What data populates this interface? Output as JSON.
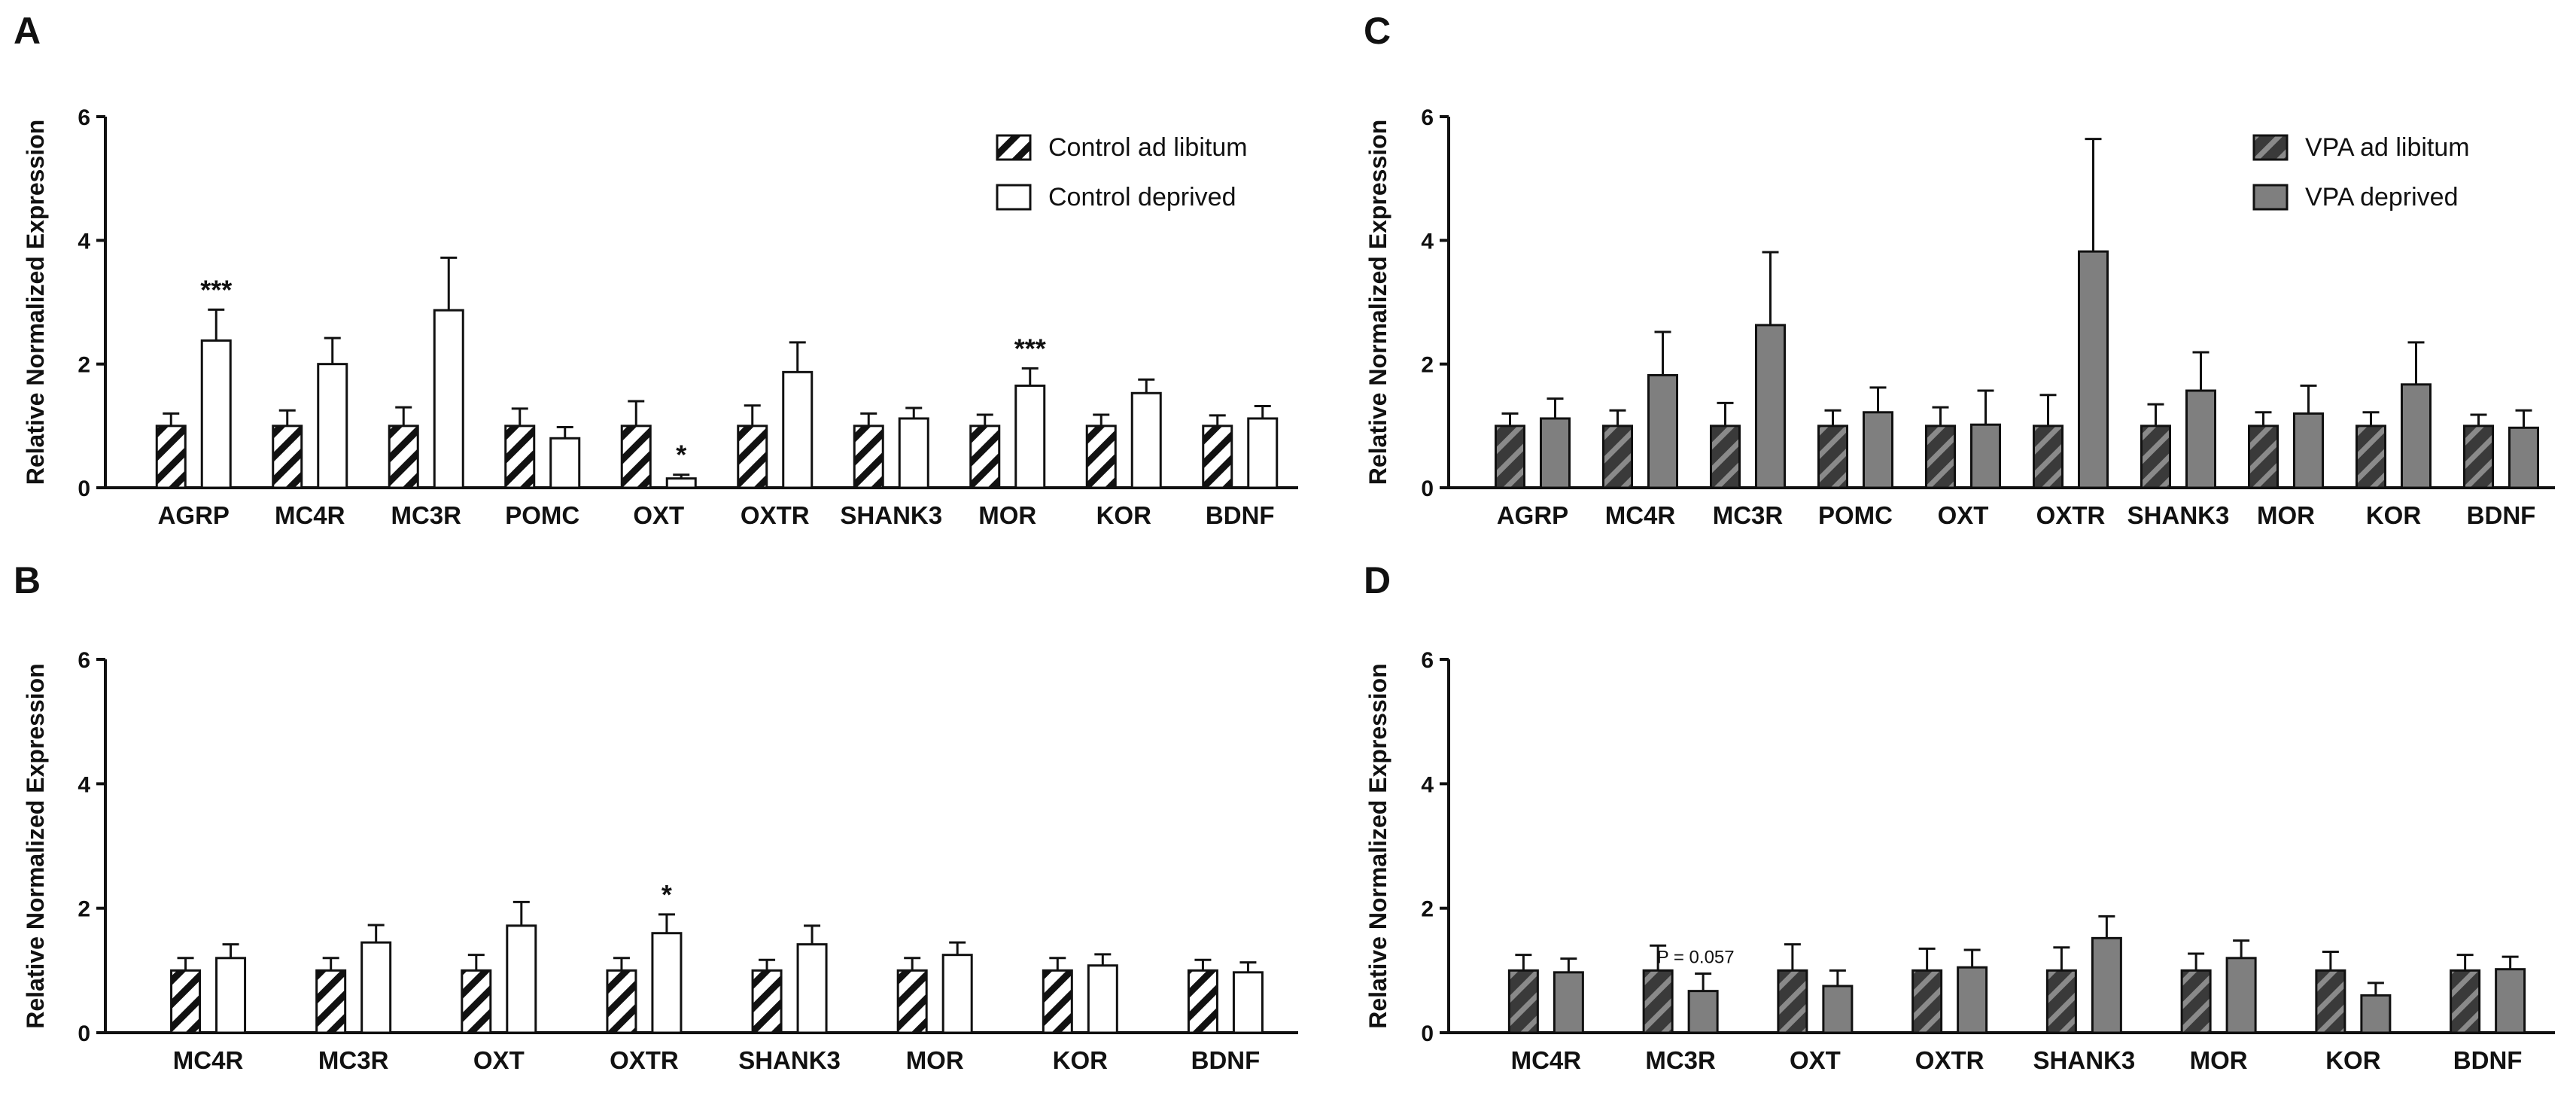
{
  "figure": {
    "panels": [
      "A",
      "B",
      "C",
      "D"
    ]
  },
  "colors": {
    "control_adlib_stripe": "#111111",
    "control_adlib_fill": "#ffffff",
    "control_deprived_fill": "#ffffff",
    "vpa_adlib_fill": "#404040",
    "vpa_adlib_stripe": "#8a8a8a",
    "vpa_deprived_fill": "#7f7f7f",
    "axis": "#111111"
  },
  "chart_data": [
    {
      "panel": "A",
      "type": "bar",
      "title": "",
      "xlabel": "",
      "ylabel": "Relative Normalized Expression",
      "ylim": [
        0,
        6
      ],
      "yticks": [
        "0",
        "2",
        "4",
        "6"
      ],
      "legend": [
        "Control ad libitum",
        "Control deprived"
      ],
      "legend_position": "top-right",
      "categories": [
        "AGRP",
        "MC4R",
        "MC3R",
        "POMC",
        "OXT",
        "OXTR",
        "SHANK3",
        "MOR",
        "KOR",
        "BDNF"
      ],
      "series": [
        {
          "name": "Control ad libitum",
          "style": "hatched-white",
          "values": [
            1,
            1,
            1,
            1,
            1,
            1,
            1,
            1,
            1,
            1
          ],
          "errors": [
            0.2,
            0.25,
            0.3,
            0.28,
            0.4,
            0.33,
            0.2,
            0.18,
            0.18,
            0.17
          ]
        },
        {
          "name": "Control deprived",
          "style": "white",
          "values": [
            2.38,
            2.0,
            2.87,
            0.8,
            0.15,
            1.87,
            1.12,
            1.65,
            1.53,
            1.12
          ],
          "errors": [
            0.5,
            0.42,
            0.85,
            0.18,
            0.06,
            0.48,
            0.17,
            0.28,
            0.22,
            0.2
          ]
        }
      ],
      "annotations": [
        {
          "category": "AGRP",
          "text": "***"
        },
        {
          "category": "OXT",
          "text": "*"
        },
        {
          "category": "MOR",
          "text": "***"
        }
      ]
    },
    {
      "panel": "B",
      "type": "bar",
      "title": "",
      "xlabel": "",
      "ylabel": "Relative Normalized Expression",
      "ylim": [
        0,
        6
      ],
      "yticks": [
        "0",
        "2",
        "4",
        "6"
      ],
      "legend": [],
      "categories": [
        "MC4R",
        "MC3R",
        "OXT",
        "OXTR",
        "SHANK3",
        "MOR",
        "KOR",
        "BDNF"
      ],
      "series": [
        {
          "name": "Control ad libitum",
          "style": "hatched-white",
          "values": [
            1,
            1,
            1,
            1,
            1,
            1,
            1,
            1
          ],
          "errors": [
            0.2,
            0.2,
            0.25,
            0.2,
            0.17,
            0.2,
            0.2,
            0.17
          ]
        },
        {
          "name": "Control deprived",
          "style": "white",
          "values": [
            1.2,
            1.45,
            1.72,
            1.6,
            1.42,
            1.25,
            1.08,
            0.97
          ],
          "errors": [
            0.22,
            0.28,
            0.38,
            0.3,
            0.3,
            0.2,
            0.18,
            0.16
          ]
        }
      ],
      "annotations": [
        {
          "category": "OXTR",
          "text": "*"
        }
      ]
    },
    {
      "panel": "C",
      "type": "bar",
      "title": "",
      "xlabel": "",
      "ylabel": "Relative Normalized Expression",
      "ylim": [
        0,
        6
      ],
      "yticks": [
        "0",
        "2",
        "4",
        "6"
      ],
      "legend": [
        "VPA ad libitum",
        "VPA deprived"
      ],
      "legend_position": "top-right",
      "categories": [
        "AGRP",
        "MC4R",
        "MC3R",
        "POMC",
        "OXT",
        "OXTR",
        "SHANK3",
        "MOR",
        "KOR",
        "BDNF"
      ],
      "series": [
        {
          "name": "VPA ad libitum",
          "style": "hatched-dark",
          "values": [
            1,
            1,
            1,
            1,
            1,
            1,
            1,
            1,
            1,
            1
          ],
          "errors": [
            0.2,
            0.25,
            0.37,
            0.25,
            0.3,
            0.5,
            0.35,
            0.22,
            0.22,
            0.18
          ]
        },
        {
          "name": "VPA deprived",
          "style": "gray",
          "values": [
            1.12,
            1.82,
            2.63,
            1.22,
            1.02,
            3.82,
            1.57,
            1.2,
            1.67,
            0.97
          ],
          "errors": [
            0.32,
            0.7,
            1.18,
            0.4,
            0.55,
            1.82,
            0.62,
            0.45,
            0.68,
            0.28
          ]
        }
      ],
      "annotations": []
    },
    {
      "panel": "D",
      "type": "bar",
      "title": "",
      "xlabel": "",
      "ylabel": "Relative Normalized Expression",
      "ylim": [
        0,
        6
      ],
      "yticks": [
        "0",
        "2",
        "4",
        "6"
      ],
      "legend": [],
      "categories": [
        "MC4R",
        "MC3R",
        "OXT",
        "OXTR",
        "SHANK3",
        "MOR",
        "KOR",
        "BDNF"
      ],
      "series": [
        {
          "name": "VPA ad libitum",
          "style": "hatched-dark",
          "values": [
            1,
            1,
            1,
            1,
            1,
            1,
            1,
            1
          ],
          "errors": [
            0.25,
            0.4,
            0.42,
            0.35,
            0.37,
            0.27,
            0.3,
            0.25
          ]
        },
        {
          "name": "VPA deprived",
          "style": "gray",
          "values": [
            0.97,
            0.67,
            0.75,
            1.05,
            1.52,
            1.2,
            0.6,
            1.02
          ],
          "errors": [
            0.22,
            0.28,
            0.25,
            0.28,
            0.35,
            0.28,
            0.2,
            0.2
          ]
        }
      ],
      "annotations": [
        {
          "category": "MC3R",
          "text": "P = 0.057"
        }
      ]
    }
  ]
}
